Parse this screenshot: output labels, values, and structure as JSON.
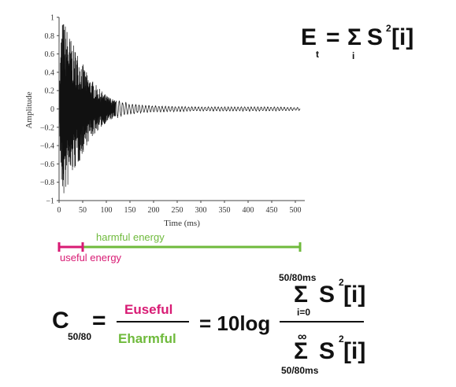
{
  "chart_data": {
    "type": "line",
    "title": "",
    "xlabel": "Time (ms)",
    "ylabel": "Amplitude",
    "xlim": [
      0,
      520
    ],
    "ylim": [
      -1,
      1
    ],
    "x_ticks": [
      0,
      50,
      100,
      150,
      200,
      250,
      300,
      350,
      400,
      450,
      500
    ],
    "y_ticks": [
      1,
      0.8,
      0.6,
      0.4,
      0.2,
      0,
      -0.2,
      -0.4,
      -0.6,
      -0.8,
      -1
    ],
    "x_tick_labels": [
      "0",
      "50",
      "100",
      "150",
      "200",
      "250",
      "300",
      "350",
      "400",
      "450",
      "500"
    ],
    "y_tick_labels": [
      "1",
      "0.8",
      "0.6",
      "0.4",
      "0.2",
      "0",
      "−0.2",
      "−0.4",
      "−0.6",
      "−0.8",
      "−1"
    ],
    "series": [
      {
        "envelope": {
          "time_ms": [
            0,
            5,
            10,
            20,
            30,
            40,
            50,
            60,
            80,
            100,
            120,
            150,
            200,
            250,
            300,
            350,
            400,
            450,
            500,
            510
          ],
          "amplitude": [
            0.15,
            0.95,
            0.98,
            0.85,
            0.7,
            0.62,
            0.5,
            0.38,
            0.25,
            0.15,
            0.09,
            0.05,
            0.03,
            0.025,
            0.02,
            0.02,
            0.02,
            0.02,
            0.015,
            0.015
          ]
        }
      }
    ],
    "grid": false,
    "colors": {
      "signal": "#111111",
      "useful": "#d81b74",
      "harmful": "#6fba3c"
    }
  },
  "timeline": {
    "harmful_label": "harmful energy",
    "useful_label": "useful energy",
    "useful_range_ms": [
      0,
      50
    ],
    "harmful_range_ms": [
      50,
      510
    ]
  },
  "formula_energy": {
    "E": "E",
    "t": "t",
    "eq": "=",
    "sigma": "Σ",
    "i": "i",
    "S": "S",
    "sq": "2",
    "idx": "[i]"
  },
  "formula_clarity": {
    "C": "C",
    "sub": "50/80",
    "eq1": "=",
    "numerator": "Euseful",
    "denominator": "Eharmful",
    "eq2": "= 10log",
    "top_limit": "50/80ms",
    "sigma": "Σ",
    "lower_index": "i=0",
    "S": "S",
    "sq": "2",
    "idx": "[i]",
    "inf": "∞",
    "bottom_limit": "50/80ms"
  }
}
